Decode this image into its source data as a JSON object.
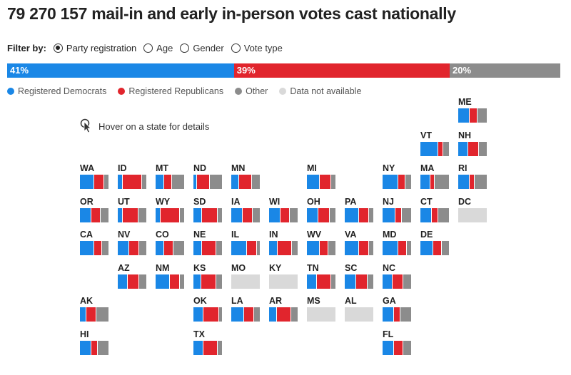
{
  "title": "79 270 157 mail-in and early in-person votes cast nationally",
  "filter": {
    "label": "Filter by:",
    "options": [
      {
        "label": "Party registration",
        "selected": true
      },
      {
        "label": "Age",
        "selected": false
      },
      {
        "label": "Gender",
        "selected": false
      },
      {
        "label": "Vote type",
        "selected": false
      }
    ]
  },
  "colors": {
    "dem": "#1a87e6",
    "rep": "#e1252d",
    "other": "#8c8c8c",
    "na": "#d9d9d9"
  },
  "national": {
    "dem_label": "41%",
    "rep_label": "39%",
    "other_label": "20%"
  },
  "legend": [
    {
      "label": "Registered Democrats",
      "color": "#1a87e6"
    },
    {
      "label": "Registered Republicans",
      "color": "#e1252d"
    },
    {
      "label": "Other",
      "color": "#8c8c8c"
    },
    {
      "label": "Data not available",
      "color": "#d9d9d9"
    }
  ],
  "hint": "Hover on a state for details",
  "chart_data": {
    "type": "bar",
    "stacked": true,
    "series": [
      {
        "name": "Registered Democrats",
        "color": "#1a87e6"
      },
      {
        "name": "Registered Republicans",
        "color": "#e1252d"
      },
      {
        "name": "Other",
        "color": "#8c8c8c"
      }
    ],
    "national": {
      "dem": 41,
      "rep": 39,
      "other": 20
    },
    "states": [
      {
        "abbr": "ME",
        "row": 0,
        "col": 10,
        "dem": 40,
        "rep": 25,
        "other": 35
      },
      {
        "abbr": "VT",
        "row": 1,
        "col": 9,
        "dem": 62,
        "rep": 18,
        "other": 20
      },
      {
        "abbr": "NH",
        "row": 1,
        "col": 10,
        "dem": 35,
        "rep": 35,
        "other": 30
      },
      {
        "abbr": "WA",
        "row": 2,
        "col": 0,
        "dem": 50,
        "rep": 35,
        "other": 15
      },
      {
        "abbr": "ID",
        "row": 2,
        "col": 1,
        "dem": 15,
        "rep": 70,
        "other": 15
      },
      {
        "abbr": "MT",
        "row": 2,
        "col": 2,
        "dem": 30,
        "rep": 25,
        "other": 45
      },
      {
        "abbr": "ND",
        "row": 2,
        "col": 3,
        "dem": 10,
        "rep": 45,
        "other": 45
      },
      {
        "abbr": "MN",
        "row": 2,
        "col": 4,
        "dem": 25,
        "rep": 45,
        "other": 30
      },
      {
        "abbr": "MI",
        "row": 2,
        "col": 6,
        "dem": 45,
        "rep": 40,
        "other": 15
      },
      {
        "abbr": "NY",
        "row": 2,
        "col": 8,
        "dem": 55,
        "rep": 25,
        "other": 20
      },
      {
        "abbr": "MA",
        "row": 2,
        "col": 9,
        "dem": 35,
        "rep": 12,
        "other": 53
      },
      {
        "abbr": "RI",
        "row": 2,
        "col": 10,
        "dem": 40,
        "rep": 15,
        "other": 45
      },
      {
        "abbr": "OR",
        "row": 3,
        "col": 0,
        "dem": 40,
        "rep": 30,
        "other": 30
      },
      {
        "abbr": "UT",
        "row": 3,
        "col": 1,
        "dem": 15,
        "rep": 55,
        "other": 30
      },
      {
        "abbr": "WY",
        "row": 3,
        "col": 2,
        "dem": 15,
        "rep": 70,
        "other": 15
      },
      {
        "abbr": "SD",
        "row": 3,
        "col": 3,
        "dem": 30,
        "rep": 55,
        "other": 15
      },
      {
        "abbr": "IA",
        "row": 3,
        "col": 4,
        "dem": 40,
        "rep": 35,
        "other": 25
      },
      {
        "abbr": "WI",
        "row": 3,
        "col": 5,
        "dem": 40,
        "rep": 30,
        "other": 30
      },
      {
        "abbr": "OH",
        "row": 3,
        "col": 6,
        "dem": 40,
        "rep": 40,
        "other": 20
      },
      {
        "abbr": "PA",
        "row": 3,
        "col": 7,
        "dem": 50,
        "rep": 35,
        "other": 15
      },
      {
        "abbr": "NJ",
        "row": 3,
        "col": 8,
        "dem": 45,
        "rep": 20,
        "other": 35
      },
      {
        "abbr": "CT",
        "row": 3,
        "col": 9,
        "dem": 40,
        "rep": 20,
        "other": 40
      },
      {
        "abbr": "DC",
        "row": 3,
        "col": 10,
        "dem": 0,
        "rep": 0,
        "other": 0,
        "na": true
      },
      {
        "abbr": "CA",
        "row": 4,
        "col": 0,
        "dem": 50,
        "rep": 25,
        "other": 25
      },
      {
        "abbr": "NV",
        "row": 4,
        "col": 1,
        "dem": 40,
        "rep": 35,
        "other": 25
      },
      {
        "abbr": "CO",
        "row": 4,
        "col": 2,
        "dem": 30,
        "rep": 30,
        "other": 40
      },
      {
        "abbr": "NE",
        "row": 4,
        "col": 3,
        "dem": 30,
        "rep": 50,
        "other": 20
      },
      {
        "abbr": "IL",
        "row": 4,
        "col": 4,
        "dem": 55,
        "rep": 35,
        "other": 10
      },
      {
        "abbr": "IN",
        "row": 4,
        "col": 5,
        "dem": 30,
        "rep": 50,
        "other": 20
      },
      {
        "abbr": "WV",
        "row": 4,
        "col": 6,
        "dem": 45,
        "rep": 30,
        "other": 25
      },
      {
        "abbr": "VA",
        "row": 4,
        "col": 7,
        "dem": 50,
        "rep": 35,
        "other": 15
      },
      {
        "abbr": "MD",
        "row": 4,
        "col": 8,
        "dem": 55,
        "rep": 30,
        "other": 15
      },
      {
        "abbr": "DE",
        "row": 4,
        "col": 9,
        "dem": 45,
        "rep": 30,
        "other": 25
      },
      {
        "abbr": "AZ",
        "row": 5,
        "col": 1,
        "dem": 35,
        "rep": 40,
        "other": 25
      },
      {
        "abbr": "NM",
        "row": 5,
        "col": 2,
        "dem": 50,
        "rep": 35,
        "other": 15
      },
      {
        "abbr": "KS",
        "row": 5,
        "col": 3,
        "dem": 25,
        "rep": 55,
        "other": 20
      },
      {
        "abbr": "MO",
        "row": 5,
        "col": 4,
        "dem": 0,
        "rep": 0,
        "other": 0,
        "na": true
      },
      {
        "abbr": "KY",
        "row": 5,
        "col": 5,
        "dem": 0,
        "rep": 0,
        "other": 0,
        "na": true
      },
      {
        "abbr": "TN",
        "row": 5,
        "col": 6,
        "dem": 35,
        "rep": 50,
        "other": 15
      },
      {
        "abbr": "SC",
        "row": 5,
        "col": 7,
        "dem": 40,
        "rep": 40,
        "other": 20
      },
      {
        "abbr": "NC",
        "row": 5,
        "col": 8,
        "dem": 35,
        "rep": 35,
        "other": 30
      },
      {
        "abbr": "AK",
        "row": 6,
        "col": 0,
        "dem": 20,
        "rep": 35,
        "other": 45
      },
      {
        "abbr": "OK",
        "row": 6,
        "col": 3,
        "dem": 35,
        "rep": 55,
        "other": 10
      },
      {
        "abbr": "LA",
        "row": 6,
        "col": 4,
        "dem": 45,
        "rep": 35,
        "other": 20
      },
      {
        "abbr": "AR",
        "row": 6,
        "col": 5,
        "dem": 25,
        "rep": 50,
        "other": 25
      },
      {
        "abbr": "MS",
        "row": 6,
        "col": 6,
        "dem": 0,
        "rep": 0,
        "other": 0,
        "na": true
      },
      {
        "abbr": "AL",
        "row": 6,
        "col": 7,
        "dem": 0,
        "rep": 0,
        "other": 0,
        "na": true
      },
      {
        "abbr": "GA",
        "row": 6,
        "col": 8,
        "dem": 40,
        "rep": 20,
        "other": 40
      },
      {
        "abbr": "HI",
        "row": 7,
        "col": 0,
        "dem": 40,
        "rep": 20,
        "other": 40
      },
      {
        "abbr": "TX",
        "row": 7,
        "col": 3,
        "dem": 35,
        "rep": 50,
        "other": 15
      },
      {
        "abbr": "FL",
        "row": 7,
        "col": 8,
        "dem": 40,
        "rep": 30,
        "other": 30
      }
    ]
  }
}
